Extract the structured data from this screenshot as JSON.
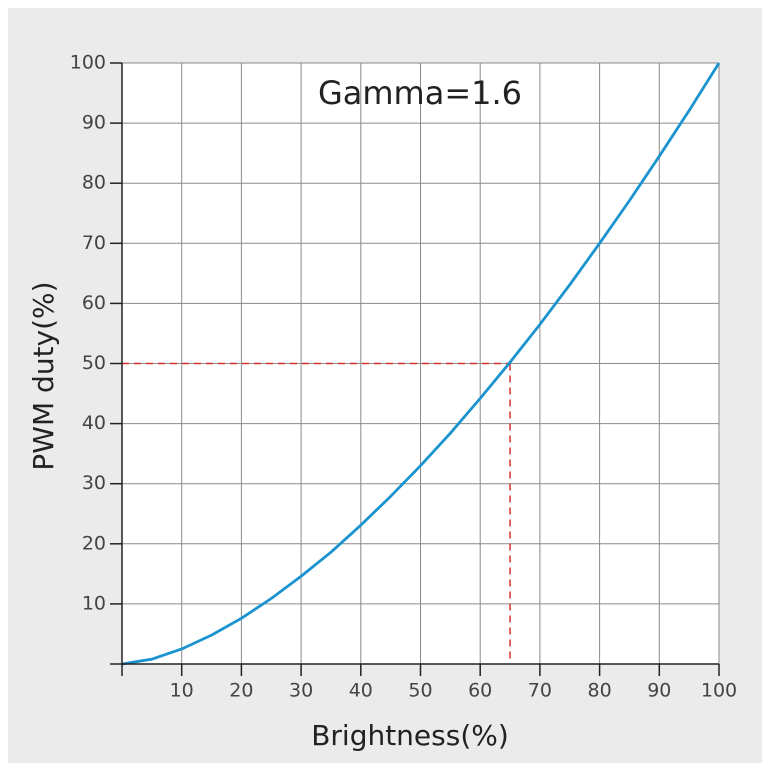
{
  "chart_data": {
    "type": "line",
    "title": "Gamma=1.6",
    "x_label": "Brightness(%)",
    "y_label": "PWM duty(%)",
    "x": [
      0,
      5,
      10,
      15,
      20,
      25,
      30,
      35,
      40,
      45,
      50,
      55,
      60,
      65,
      70,
      75,
      80,
      85,
      90,
      95,
      100
    ],
    "series": [
      {
        "name": "Gamma=1.6",
        "color": "#1b93cf",
        "values": [
          0,
          0.8,
          2.5,
          4.8,
          7.6,
          10.9,
          14.6,
          18.6,
          23.1,
          27.9,
          33.0,
          38.4,
          44.2,
          50.2,
          56.5,
          63.1,
          70.0,
          77.1,
          84.5,
          92.1,
          100
        ]
      }
    ],
    "reference": {
      "x": 65,
      "y": 50,
      "color": "#d9302c"
    },
    "xlim": [
      0,
      100
    ],
    "ylim": [
      0,
      100
    ],
    "xticks": [
      10,
      20,
      30,
      40,
      50,
      60,
      70,
      80,
      90,
      100
    ],
    "yticks": [
      10,
      20,
      30,
      40,
      50,
      60,
      70,
      80,
      90,
      100
    ],
    "grid": true
  }
}
